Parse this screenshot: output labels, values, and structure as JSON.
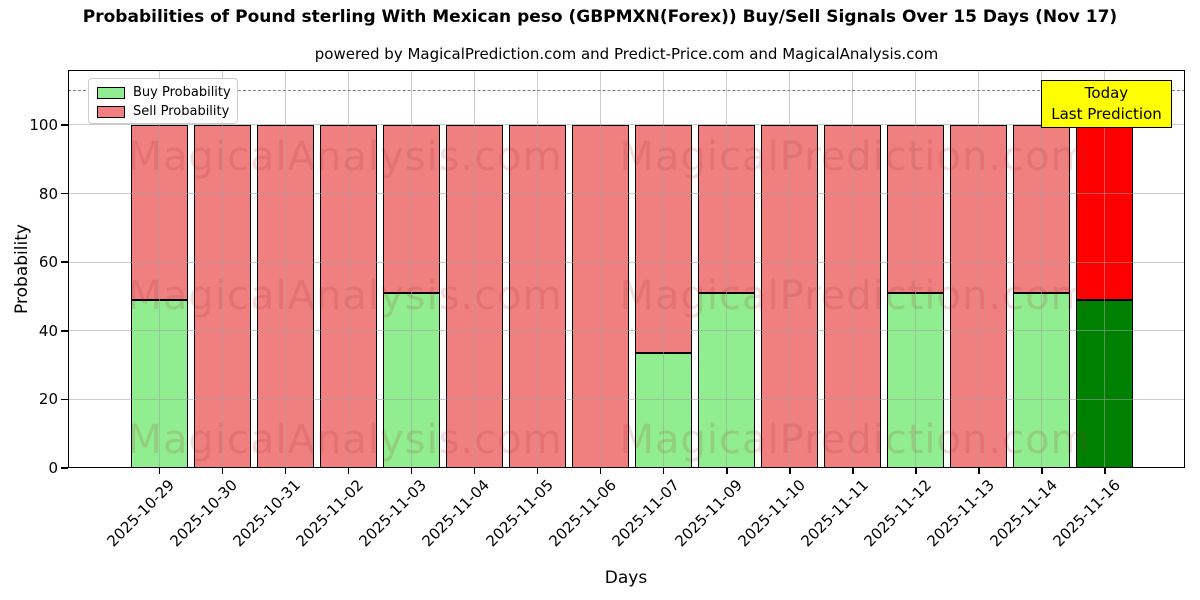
{
  "header": {
    "title": "Probabilities of Pound sterling With Mexican peso (GBPMXN(Forex)) Buy/Sell Signals Over 15 Days (Nov 17)",
    "subtitle": "powered by MagicalPrediction.com and Predict-Price.com and MagicalAnalysis.com"
  },
  "annotation_box": {
    "line1": "Today",
    "line2": "Last Prediction",
    "bg_color": "#FFFF00"
  },
  "watermark": {
    "texts": [
      "MagicalAnalysis.com",
      "MagicalPrediction.com"
    ]
  },
  "chart_data": {
    "type": "bar",
    "stacked": true,
    "title": "Probabilities of Pound sterling With Mexican peso (GBPMXN(Forex)) Buy/Sell Signals Over 15 Days (Nov 17)",
    "subtitle": "powered by MagicalPrediction.com and Predict-Price.com and MagicalAnalysis.com",
    "xlabel": "Days",
    "ylabel": "Probability",
    "categories": [
      "2025-10-29",
      "2025-10-30",
      "2025-10-31",
      "2025-11-02",
      "2025-11-03",
      "2025-11-04",
      "2025-11-05",
      "2025-11-06",
      "2025-11-07",
      "2025-11-09",
      "2025-11-10",
      "2025-11-11",
      "2025-11-12",
      "2025-11-13",
      "2025-11-14",
      "2025-11-16"
    ],
    "series": [
      {
        "name": "Buy Probability",
        "color": "#90EE90",
        "today_color": "#008000",
        "values": [
          49,
          0,
          0,
          0,
          51,
          0,
          0,
          0,
          33.5,
          51,
          0,
          0,
          51,
          0,
          51,
          49
        ]
      },
      {
        "name": "Sell Probability",
        "color": "#F08080",
        "today_color": "#FF0000",
        "values": [
          51,
          100,
          100,
          100,
          49,
          100,
          100,
          100,
          66.5,
          49,
          100,
          100,
          49,
          100,
          49,
          51
        ]
      }
    ],
    "today_index": 15,
    "yticks": [
      0,
      20,
      40,
      60,
      80,
      100
    ],
    "ylim": [
      0,
      116
    ],
    "grid": true,
    "legend_position": "upper-left",
    "threshold_line": {
      "y": 110,
      "style": "dashed",
      "color": "#7f7f7f"
    },
    "bar_edge_color": "#000000"
  }
}
